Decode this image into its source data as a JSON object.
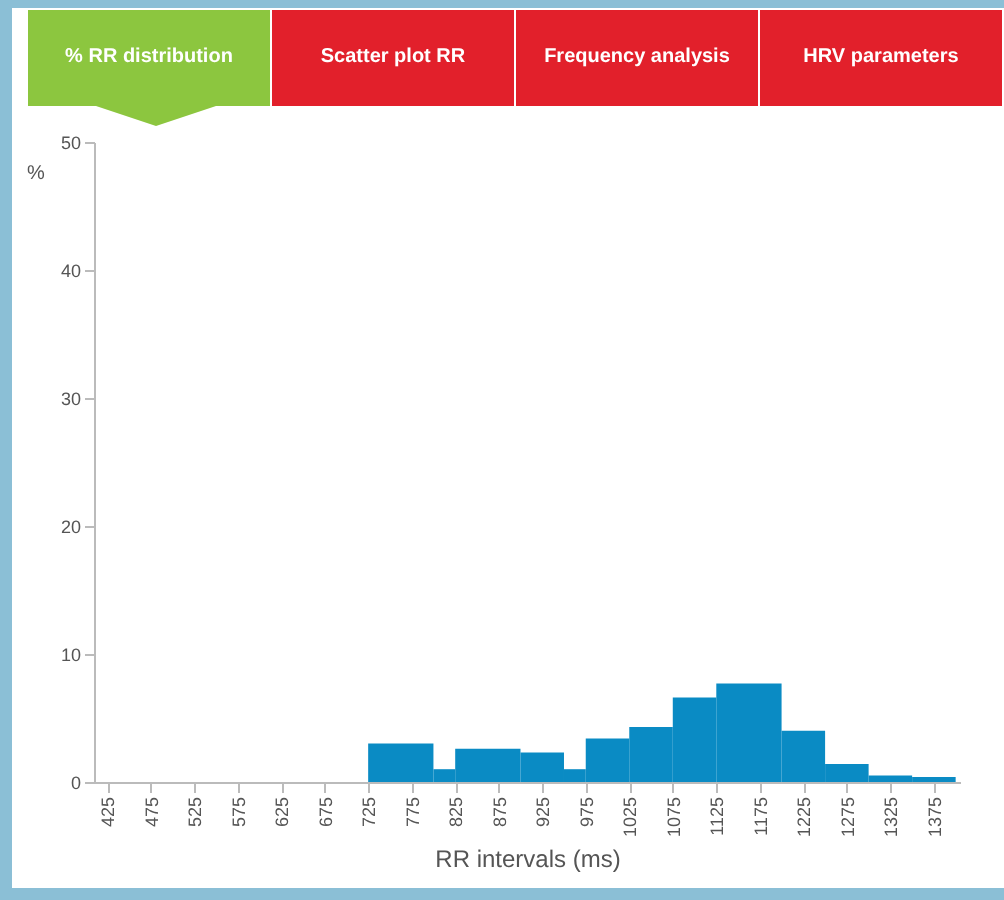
{
  "chart_data": {
    "type": "histogram",
    "xlabel": "RR intervals (ms)",
    "ylabel": "%",
    "annotations": [
      "% RR distribution",
      "Scatter plot RR",
      "Frequency analysis",
      "HRV parameters"
    ],
    "bins": [
      725,
      800,
      825,
      900,
      950,
      975,
      1025,
      1075,
      1125,
      1200,
      1250,
      1300,
      1350,
      1400
    ],
    "values": [
      3.0,
      1.0,
      2.6,
      2.3,
      1.0,
      3.4,
      4.3,
      6.6,
      7.7,
      4.0,
      1.4,
      0.5,
      0.4
    ],
    "color": "#0a8bc4",
    "xlim": [
      410,
      1405
    ],
    "xticks": [
      425,
      475,
      525,
      575,
      625,
      675,
      725,
      775,
      825,
      875,
      925,
      975,
      1025,
      1075,
      1125,
      1175,
      1225,
      1275,
      1325,
      1375
    ],
    "ylim": [
      0,
      50
    ],
    "yticks": [
      0,
      10,
      20,
      30,
      40,
      50
    ],
    "grid": false
  }
}
